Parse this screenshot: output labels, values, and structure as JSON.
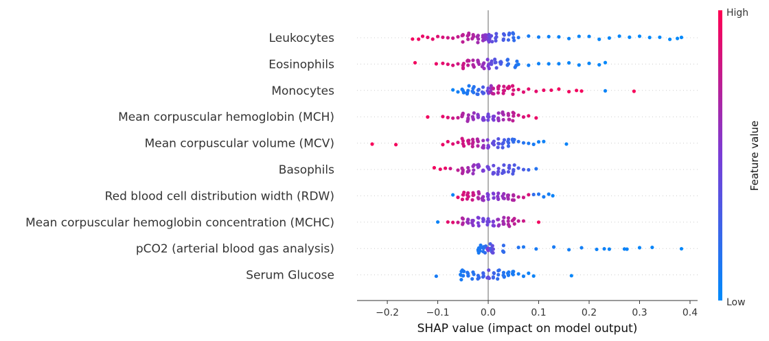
{
  "chart_data": {
    "type": "scatter",
    "subtype": "shap-beeswarm",
    "xlabel": "SHAP value (impact on model output)",
    "xlim": [
      -0.26,
      0.415
    ],
    "xticks": [
      -0.2,
      -0.1,
      0.0,
      0.1,
      0.2,
      0.3,
      0.4
    ],
    "xtick_labels": [
      "−0.2",
      "−0.1",
      "0.0",
      "0.1",
      "0.2",
      "0.3",
      "0.4"
    ],
    "colorbar": {
      "title": "Feature value",
      "high_label": "High",
      "low_label": "Low",
      "high_color": "#ff0052",
      "low_color": "#008bfb"
    },
    "grid": false,
    "features": [
      {
        "name": "Leukocytes",
        "points": [
          [
            -0.15,
            0.95
          ],
          [
            -0.138,
            0.94
          ],
          [
            -0.13,
            0.92
          ],
          [
            -0.12,
            0.9
          ],
          [
            -0.11,
            0.9
          ],
          [
            -0.1,
            0.88
          ],
          [
            -0.09,
            0.85
          ],
          [
            -0.08,
            0.82
          ],
          [
            -0.07,
            0.8
          ],
          [
            -0.06,
            0.78
          ],
          [
            -0.05,
            0.75
          ],
          [
            -0.04,
            0.72
          ],
          [
            -0.03,
            0.7
          ],
          [
            -0.02,
            0.65
          ],
          [
            -0.01,
            0.6
          ],
          [
            -0.005,
            0.55
          ],
          [
            0.0,
            0.5
          ],
          [
            0.002,
            0.45
          ],
          [
            0.006,
            0.4
          ],
          [
            0.015,
            0.35
          ],
          [
            0.03,
            0.3
          ],
          [
            0.04,
            0.25
          ],
          [
            0.05,
            0.2
          ],
          [
            0.06,
            0.15
          ],
          [
            0.08,
            0.1
          ],
          [
            0.1,
            0.08
          ],
          [
            0.12,
            0.06
          ],
          [
            0.14,
            0.05
          ],
          [
            0.16,
            0.05
          ],
          [
            0.18,
            0.04
          ],
          [
            0.2,
            0.04
          ],
          [
            0.22,
            0.03
          ],
          [
            0.24,
            0.03
          ],
          [
            0.26,
            0.03
          ],
          [
            0.28,
            0.02
          ],
          [
            0.3,
            0.02
          ],
          [
            0.32,
            0.02
          ],
          [
            0.34,
            0.02
          ],
          [
            0.36,
            0.01
          ],
          [
            0.375,
            0.01
          ],
          [
            0.383,
            0.01
          ]
        ]
      },
      {
        "name": "Eosinophils",
        "points": [
          [
            -0.145,
            0.95
          ],
          [
            -0.103,
            0.92
          ],
          [
            -0.09,
            0.9
          ],
          [
            -0.08,
            0.88
          ],
          [
            -0.07,
            0.85
          ],
          [
            -0.06,
            0.82
          ],
          [
            -0.05,
            0.8
          ],
          [
            -0.04,
            0.75
          ],
          [
            -0.03,
            0.7
          ],
          [
            -0.02,
            0.65
          ],
          [
            -0.01,
            0.6
          ],
          [
            0.0,
            0.5
          ],
          [
            0.005,
            0.4
          ],
          [
            0.015,
            0.35
          ],
          [
            0.025,
            0.3
          ],
          [
            0.04,
            0.2
          ],
          [
            0.055,
            0.15
          ],
          [
            0.06,
            0.1
          ],
          [
            0.08,
            0.08
          ],
          [
            0.1,
            0.06
          ],
          [
            0.12,
            0.05
          ],
          [
            0.14,
            0.05
          ],
          [
            0.16,
            0.04
          ],
          [
            0.18,
            0.04
          ],
          [
            0.2,
            0.03
          ],
          [
            0.22,
            0.03
          ],
          [
            0.232,
            0.02
          ]
        ]
      },
      {
        "name": "Monocytes",
        "points": [
          [
            -0.07,
            0.05
          ],
          [
            -0.06,
            0.08
          ],
          [
            -0.05,
            0.1
          ],
          [
            -0.04,
            0.12
          ],
          [
            -0.03,
            0.15
          ],
          [
            -0.02,
            0.2
          ],
          [
            -0.01,
            0.3
          ],
          [
            0.0,
            0.45
          ],
          [
            0.005,
            0.6
          ],
          [
            0.01,
            0.75
          ],
          [
            0.02,
            0.8
          ],
          [
            0.03,
            0.82
          ],
          [
            0.04,
            0.85
          ],
          [
            0.05,
            0.85
          ],
          [
            0.06,
            0.88
          ],
          [
            0.07,
            0.88
          ],
          [
            0.08,
            0.9
          ],
          [
            0.095,
            0.9
          ],
          [
            0.11,
            0.92
          ],
          [
            0.125,
            0.93
          ],
          [
            0.14,
            0.95
          ],
          [
            0.16,
            0.95
          ],
          [
            0.175,
            0.95
          ],
          [
            0.185,
            0.96
          ],
          [
            0.232,
            0.05
          ],
          [
            0.289,
            0.97
          ]
        ]
      },
      {
        "name": "Mean corpuscular hemoglobin (MCH)",
        "points": [
          [
            -0.12,
            0.95
          ],
          [
            -0.09,
            0.9
          ],
          [
            -0.08,
            0.88
          ],
          [
            -0.07,
            0.8
          ],
          [
            -0.06,
            0.78
          ],
          [
            -0.05,
            0.7
          ],
          [
            -0.04,
            0.65
          ],
          [
            -0.03,
            0.6
          ],
          [
            -0.02,
            0.55
          ],
          [
            -0.01,
            0.5
          ],
          [
            0.0,
            0.45
          ],
          [
            0.01,
            0.5
          ],
          [
            0.02,
            0.6
          ],
          [
            0.03,
            0.65
          ],
          [
            0.04,
            0.7
          ],
          [
            0.05,
            0.75
          ],
          [
            0.06,
            0.8
          ],
          [
            0.07,
            0.85
          ],
          [
            0.08,
            0.9
          ],
          [
            0.095,
            0.92
          ]
        ]
      },
      {
        "name": "Mean corpuscular volume (MCV)",
        "points": [
          [
            -0.23,
            0.97
          ],
          [
            -0.183,
            0.96
          ],
          [
            -0.09,
            0.92
          ],
          [
            -0.08,
            0.9
          ],
          [
            -0.07,
            0.88
          ],
          [
            -0.06,
            0.85
          ],
          [
            -0.05,
            0.82
          ],
          [
            -0.04,
            0.8
          ],
          [
            -0.03,
            0.75
          ],
          [
            -0.02,
            0.7
          ],
          [
            -0.01,
            0.6
          ],
          [
            0.0,
            0.5
          ],
          [
            0.01,
            0.4
          ],
          [
            0.02,
            0.35
          ],
          [
            0.03,
            0.3
          ],
          [
            0.04,
            0.25
          ],
          [
            0.05,
            0.2
          ],
          [
            0.06,
            0.18
          ],
          [
            0.07,
            0.15
          ],
          [
            0.08,
            0.12
          ],
          [
            0.09,
            0.1
          ],
          [
            0.1,
            0.08
          ],
          [
            0.11,
            0.06
          ],
          [
            0.155,
            0.05
          ]
        ]
      },
      {
        "name": "Basophils",
        "points": [
          [
            -0.107,
            0.95
          ],
          [
            -0.095,
            0.93
          ],
          [
            -0.085,
            0.92
          ],
          [
            -0.075,
            0.8
          ],
          [
            -0.06,
            0.75
          ],
          [
            -0.05,
            0.7
          ],
          [
            -0.04,
            0.65
          ],
          [
            -0.03,
            0.6
          ],
          [
            -0.02,
            0.55
          ],
          [
            -0.01,
            0.5
          ],
          [
            0.0,
            0.45
          ],
          [
            0.01,
            0.4
          ],
          [
            0.02,
            0.4
          ],
          [
            0.03,
            0.35
          ],
          [
            0.04,
            0.35
          ],
          [
            0.05,
            0.32
          ],
          [
            0.06,
            0.3
          ],
          [
            0.07,
            0.3
          ],
          [
            0.08,
            0.25
          ],
          [
            0.095,
            0.15
          ]
        ]
      },
      {
        "name": "Red blood cell distribution width (RDW)",
        "points": [
          [
            -0.07,
            0.05
          ],
          [
            -0.06,
            0.9
          ],
          [
            -0.05,
            0.85
          ],
          [
            -0.04,
            0.82
          ],
          [
            -0.03,
            0.8
          ],
          [
            -0.02,
            0.7
          ],
          [
            -0.01,
            0.6
          ],
          [
            0.0,
            0.5
          ],
          [
            0.01,
            0.5
          ],
          [
            0.02,
            0.55
          ],
          [
            0.03,
            0.6
          ],
          [
            0.04,
            0.65
          ],
          [
            0.05,
            0.7
          ],
          [
            0.06,
            0.75
          ],
          [
            0.07,
            0.8
          ],
          [
            0.08,
            0.85
          ],
          [
            0.09,
            0.2
          ],
          [
            0.1,
            0.15
          ],
          [
            0.11,
            0.1
          ],
          [
            0.12,
            0.08
          ],
          [
            0.128,
            0.05
          ]
        ]
      },
      {
        "name": "Mean corpuscular hemoglobin concentration (MCHC)",
        "points": [
          [
            -0.1,
            0.05
          ],
          [
            -0.08,
            0.9
          ],
          [
            -0.07,
            0.88
          ],
          [
            -0.06,
            0.8
          ],
          [
            -0.05,
            0.7
          ],
          [
            -0.04,
            0.6
          ],
          [
            -0.03,
            0.55
          ],
          [
            -0.02,
            0.5
          ],
          [
            -0.01,
            0.45
          ],
          [
            0.0,
            0.45
          ],
          [
            0.01,
            0.5
          ],
          [
            0.02,
            0.6
          ],
          [
            0.03,
            0.65
          ],
          [
            0.04,
            0.7
          ],
          [
            0.05,
            0.75
          ],
          [
            0.06,
            0.75
          ],
          [
            0.07,
            0.8
          ],
          [
            0.1,
            0.95
          ]
        ]
      },
      {
        "name": "pCO2 (arterial blood gas analysis)",
        "points": [
          [
            -0.02,
            0.1
          ],
          [
            -0.015,
            0.12
          ],
          [
            -0.01,
            0.15
          ],
          [
            -0.005,
            0.2
          ],
          [
            0.0,
            0.5
          ],
          [
            0.005,
            0.3
          ],
          [
            0.01,
            0.4
          ],
          [
            0.03,
            0.2
          ],
          [
            0.06,
            0.15
          ],
          [
            0.07,
            0.12
          ],
          [
            0.095,
            0.1
          ],
          [
            0.13,
            0.1
          ],
          [
            0.16,
            0.08
          ],
          [
            0.185,
            0.08
          ],
          [
            0.215,
            0.06
          ],
          [
            0.23,
            0.06
          ],
          [
            0.24,
            0.05
          ],
          [
            0.27,
            0.05
          ],
          [
            0.275,
            0.05
          ],
          [
            0.3,
            0.04
          ],
          [
            0.325,
            0.04
          ],
          [
            0.383,
            0.02
          ]
        ]
      },
      {
        "name": "Serum Glucose",
        "points": [
          [
            -0.103,
            0.1
          ],
          [
            -0.055,
            0.1
          ],
          [
            -0.05,
            0.12
          ],
          [
            -0.04,
            0.15
          ],
          [
            -0.03,
            0.15
          ],
          [
            -0.02,
            0.2
          ],
          [
            -0.01,
            0.25
          ],
          [
            0.0,
            0.4
          ],
          [
            0.01,
            0.25
          ],
          [
            0.02,
            0.2
          ],
          [
            0.03,
            0.15
          ],
          [
            0.04,
            0.12
          ],
          [
            0.05,
            0.1
          ],
          [
            0.06,
            0.08
          ],
          [
            0.07,
            0.08
          ],
          [
            0.08,
            0.06
          ],
          [
            0.09,
            0.05
          ],
          [
            0.165,
            0.03
          ]
        ]
      }
    ]
  }
}
